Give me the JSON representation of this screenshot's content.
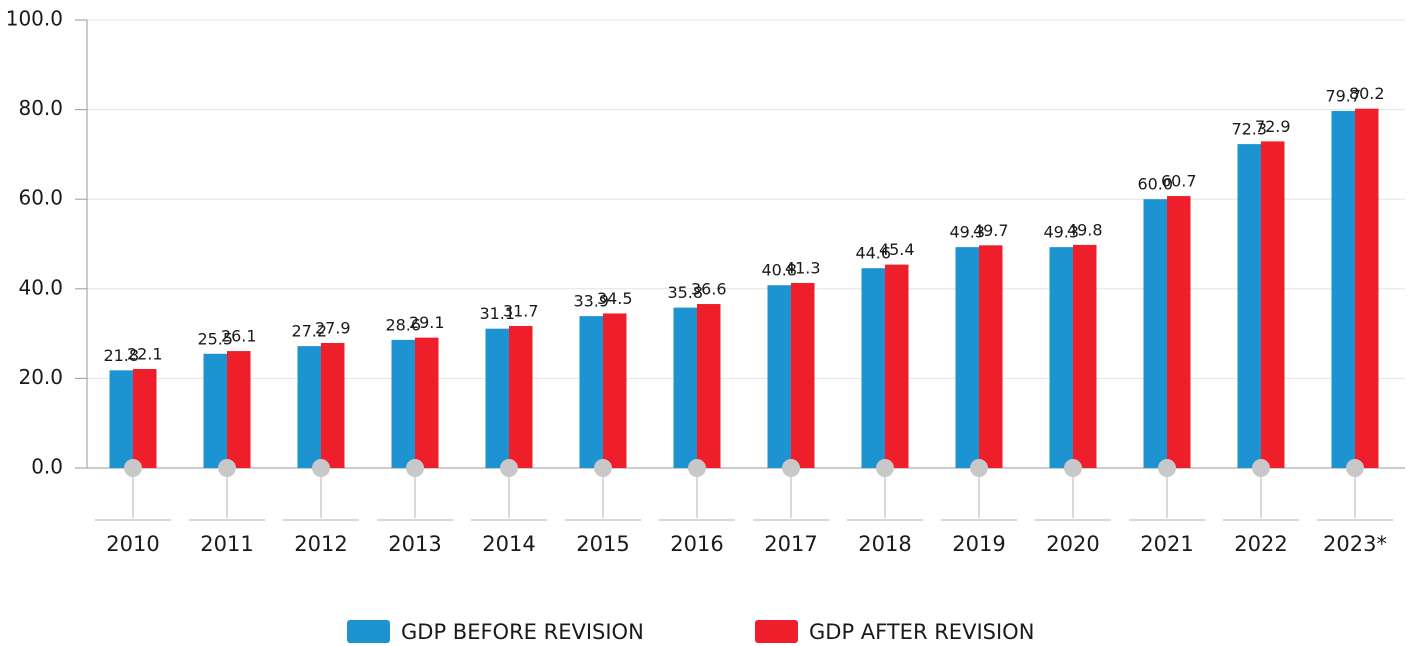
{
  "chart_data": {
    "type": "bar",
    "categories": [
      "2010",
      "2011",
      "2012",
      "2013",
      "2014",
      "2015",
      "2016",
      "2017",
      "2018",
      "2019",
      "2020",
      "2021",
      "2022",
      "2023*"
    ],
    "series": [
      {
        "name": "GDP BEFORE REVISION",
        "color": "#1e93d2",
        "values": [
          21.8,
          25.5,
          27.2,
          28.6,
          31.1,
          33.9,
          35.8,
          40.8,
          44.6,
          49.3,
          49.3,
          60.0,
          72.3,
          79.7
        ],
        "value_labels": [
          "21.8",
          "25.5",
          "27.2",
          "28.6",
          "31.1",
          "33.9",
          "35.8",
          "40.8",
          "44.6",
          "49.3",
          "49.3",
          "60.0",
          "72.3",
          "79.7"
        ]
      },
      {
        "name": "GDP AFTER REVISION",
        "color": "#ee1f2b",
        "values": [
          22.1,
          26.1,
          27.9,
          29.1,
          31.7,
          34.5,
          36.6,
          41.3,
          45.4,
          49.7,
          49.8,
          60.7,
          72.9,
          80.2
        ],
        "value_labels": [
          "22.1",
          "26.1",
          "27.9",
          "29.1",
          "31.7",
          "34.5",
          "36.6",
          "41.3",
          "45.4",
          "49.7",
          "49.8",
          "60.7",
          "72.9",
          "80.2"
        ]
      }
    ],
    "ylim": [
      0,
      100
    ],
    "yticks": [
      {
        "value": 0,
        "label": "0.0"
      },
      {
        "value": 20,
        "label": "20.0"
      },
      {
        "value": 40,
        "label": "40.0"
      },
      {
        "value": 60,
        "label": "60.0"
      },
      {
        "value": 80,
        "label": "80.0"
      },
      {
        "value": 100,
        "label": "100.0"
      }
    ],
    "grid": true
  }
}
